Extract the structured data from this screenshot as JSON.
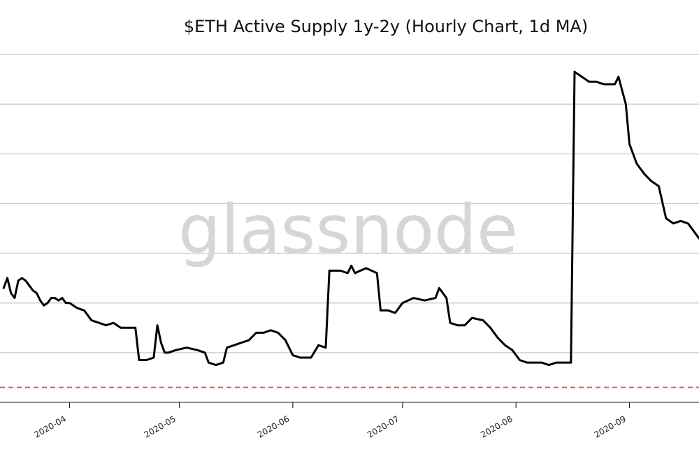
{
  "chart_data": {
    "type": "line",
    "title": "$ETH Active Supply 1y-2y (Hourly Chart, 1d MA)",
    "watermark": "glassnode",
    "xlabel": "",
    "ylabel": "",
    "x_ticks": [
      {
        "label": "2020-04",
        "date": "2020-04-01"
      },
      {
        "label": "2020-05",
        "date": "2020-05-01"
      },
      {
        "label": "2020-06",
        "date": "2020-06-01"
      },
      {
        "label": "2020-07",
        "date": "2020-07-01"
      },
      {
        "label": "2020-08",
        "date": "2020-08-01"
      },
      {
        "label": "2020-09",
        "date": "2020-09-01"
      }
    ],
    "xlim": [
      "2020-03-13",
      "2020-09-20"
    ],
    "ylim": [
      0,
      7
    ],
    "gridlines_y": [
      1,
      2,
      3,
      4,
      5,
      6,
      7
    ],
    "grid": true,
    "reference_line": {
      "y": 0.3,
      "color": "#e05b5b",
      "style": "dashed"
    },
    "colors": {
      "line": "#000000",
      "grid": "#d0d0d0",
      "reference": "#e05b5b"
    },
    "series": [
      {
        "values": [
          [
            "2020-03-14",
            2.3
          ],
          [
            "2020-03-15",
            2.5
          ],
          [
            "2020-03-16",
            2.2
          ],
          [
            "2020-03-17",
            2.1
          ],
          [
            "2020-03-18",
            2.45
          ],
          [
            "2020-03-19",
            2.5
          ],
          [
            "2020-03-20",
            2.45
          ],
          [
            "2020-03-21",
            2.35
          ],
          [
            "2020-03-22",
            2.25
          ],
          [
            "2020-03-23",
            2.2
          ],
          [
            "2020-03-24",
            2.05
          ],
          [
            "2020-03-25",
            1.95
          ],
          [
            "2020-03-26",
            2.0
          ],
          [
            "2020-03-27",
            2.1
          ],
          [
            "2020-03-28",
            2.1
          ],
          [
            "2020-03-29",
            2.05
          ],
          [
            "2020-03-30",
            2.1
          ],
          [
            "2020-03-31",
            2.0
          ],
          [
            "2020-04-01",
            2.0
          ],
          [
            "2020-04-03",
            1.9
          ],
          [
            "2020-04-05",
            1.85
          ],
          [
            "2020-04-07",
            1.65
          ],
          [
            "2020-04-09",
            1.6
          ],
          [
            "2020-04-11",
            1.55
          ],
          [
            "2020-04-13",
            1.6
          ],
          [
            "2020-04-15",
            1.5
          ],
          [
            "2020-04-17",
            1.5
          ],
          [
            "2020-04-19",
            1.5
          ],
          [
            "2020-04-20",
            0.85
          ],
          [
            "2020-04-22",
            0.85
          ],
          [
            "2020-04-24",
            0.9
          ],
          [
            "2020-04-25",
            1.55
          ],
          [
            "2020-04-26",
            1.2
          ],
          [
            "2020-04-27",
            1.0
          ],
          [
            "2020-04-28",
            1.0
          ],
          [
            "2020-04-30",
            1.05
          ],
          [
            "2020-05-03",
            1.1
          ],
          [
            "2020-05-06",
            1.05
          ],
          [
            "2020-05-08",
            1.0
          ],
          [
            "2020-05-09",
            0.8
          ],
          [
            "2020-05-11",
            0.75
          ],
          [
            "2020-05-13",
            0.8
          ],
          [
            "2020-05-14",
            1.1
          ],
          [
            "2020-05-16",
            1.15
          ],
          [
            "2020-05-18",
            1.2
          ],
          [
            "2020-05-20",
            1.25
          ],
          [
            "2020-05-22",
            1.4
          ],
          [
            "2020-05-24",
            1.4
          ],
          [
            "2020-05-26",
            1.45
          ],
          [
            "2020-05-28",
            1.4
          ],
          [
            "2020-05-30",
            1.25
          ],
          [
            "2020-06-01",
            0.95
          ],
          [
            "2020-06-03",
            0.9
          ],
          [
            "2020-06-06",
            0.9
          ],
          [
            "2020-06-08",
            1.15
          ],
          [
            "2020-06-10",
            1.1
          ],
          [
            "2020-06-11",
            2.65
          ],
          [
            "2020-06-14",
            2.65
          ],
          [
            "2020-06-16",
            2.6
          ],
          [
            "2020-06-17",
            2.75
          ],
          [
            "2020-06-18",
            2.6
          ],
          [
            "2020-06-21",
            2.7
          ],
          [
            "2020-06-24",
            2.6
          ],
          [
            "2020-06-25",
            1.85
          ],
          [
            "2020-06-27",
            1.85
          ],
          [
            "2020-06-29",
            1.8
          ],
          [
            "2020-07-01",
            2.0
          ],
          [
            "2020-07-04",
            2.1
          ],
          [
            "2020-07-07",
            2.05
          ],
          [
            "2020-07-10",
            2.1
          ],
          [
            "2020-07-11",
            2.3
          ],
          [
            "2020-07-13",
            2.1
          ],
          [
            "2020-07-14",
            1.6
          ],
          [
            "2020-07-16",
            1.55
          ],
          [
            "2020-07-18",
            1.55
          ],
          [
            "2020-07-20",
            1.7
          ],
          [
            "2020-07-23",
            1.65
          ],
          [
            "2020-07-25",
            1.5
          ],
          [
            "2020-07-27",
            1.3
          ],
          [
            "2020-07-29",
            1.15
          ],
          [
            "2020-07-31",
            1.05
          ],
          [
            "2020-08-02",
            0.85
          ],
          [
            "2020-08-04",
            0.8
          ],
          [
            "2020-08-06",
            0.8
          ],
          [
            "2020-08-08",
            0.8
          ],
          [
            "2020-08-10",
            0.75
          ],
          [
            "2020-08-12",
            0.8
          ],
          [
            "2020-08-14",
            0.8
          ],
          [
            "2020-08-16",
            0.8
          ],
          [
            "2020-08-17",
            6.65
          ],
          [
            "2020-08-19",
            6.55
          ],
          [
            "2020-08-21",
            6.45
          ],
          [
            "2020-08-23",
            6.45
          ],
          [
            "2020-08-25",
            6.4
          ],
          [
            "2020-08-28",
            6.4
          ],
          [
            "2020-08-29",
            6.55
          ],
          [
            "2020-08-31",
            6.0
          ],
          [
            "2020-09-01",
            5.2
          ],
          [
            "2020-09-03",
            4.8
          ],
          [
            "2020-09-05",
            4.6
          ],
          [
            "2020-09-07",
            4.45
          ],
          [
            "2020-09-09",
            4.35
          ],
          [
            "2020-09-11",
            3.7
          ],
          [
            "2020-09-13",
            3.6
          ],
          [
            "2020-09-15",
            3.65
          ],
          [
            "2020-09-17",
            3.6
          ],
          [
            "2020-09-20",
            3.3
          ]
        ]
      }
    ]
  }
}
